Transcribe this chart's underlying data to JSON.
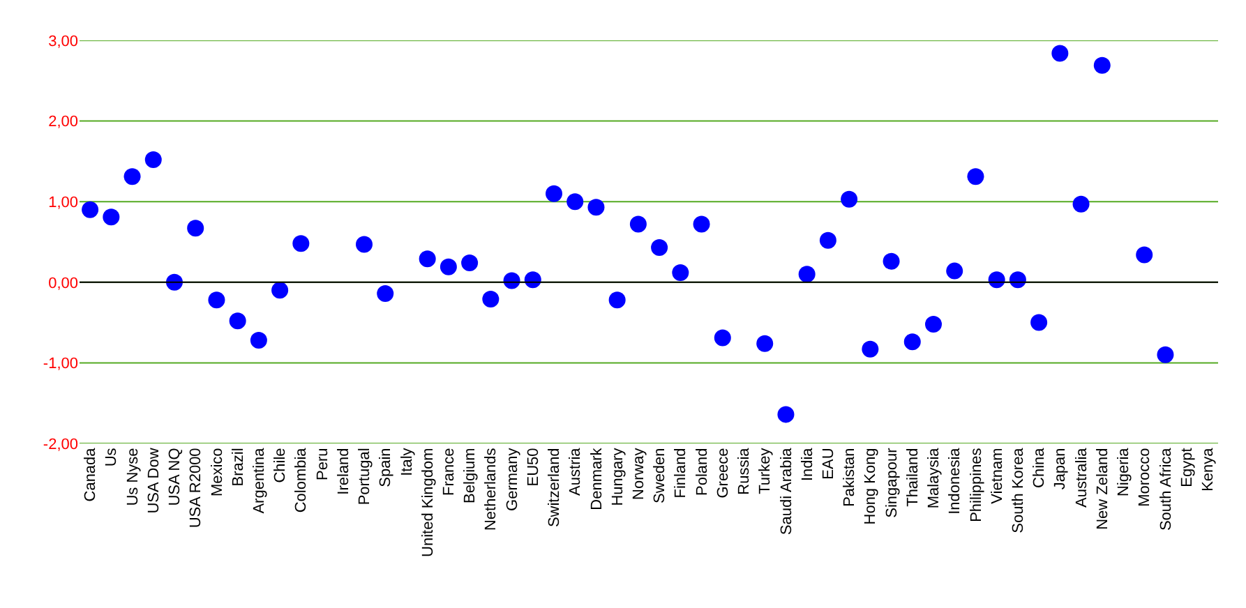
{
  "chart_data": {
    "type": "scatter",
    "categories": [
      "Canada",
      "Us",
      "Us Nyse",
      "USA Dow",
      "USA NQ",
      "USA R2000",
      "Mexico",
      "Brazil",
      "Argentina",
      "Chile",
      "Colombia",
      "Peru",
      "Ireland",
      "Portugal",
      "Spain",
      "Italy",
      "United Kingdom",
      "France",
      "Belgium",
      "Netherlands",
      "Germany",
      "EU50",
      "Switzerland",
      "Austria",
      "Denmark",
      "Hungary",
      "Norway",
      "Sweden",
      "Finland",
      "Poland",
      "Greece",
      "Russia",
      "Turkey",
      "Saudi Arabia",
      "India",
      "EAU",
      "Pakistan",
      "Hong Kong",
      "Singapour",
      "Thailand",
      "Malaysia",
      "Indonesia",
      "Philippines",
      "Vietnam",
      "South Korea",
      "China",
      "Japan",
      "Australia",
      "New Zeland",
      "Nigeria",
      "Morocco",
      "South Africa",
      "Egypt",
      "Kenya"
    ],
    "series": [
      {
        "color": "#0000ff",
        "values": [
          0.9,
          0.81,
          1.31,
          1.52,
          0.0,
          0.67,
          -0.22,
          -0.48,
          -0.72,
          -0.1,
          0.48,
          null,
          null,
          0.47,
          -0.14,
          null,
          0.29,
          0.19,
          0.24,
          -0.21,
          0.02,
          0.03,
          1.1,
          1.0,
          0.93,
          -0.22,
          0.72,
          0.43,
          0.12,
          0.72,
          -0.69,
          null,
          -0.76,
          -1.64,
          0.1,
          0.52,
          1.03,
          -0.83,
          0.26,
          -0.74,
          -0.52,
          0.14,
          1.31,
          0.03,
          0.03,
          -0.5,
          2.84,
          0.97,
          2.69,
          null,
          0.34,
          -0.9,
          null,
          null
        ]
      }
    ],
    "ylim": [
      -2,
      3
    ],
    "yticks": [
      {
        "value": -2,
        "label": "-2,00"
      },
      {
        "value": -1,
        "label": "-1,00"
      },
      {
        "value": 0,
        "label": "0,00"
      },
      {
        "value": 1,
        "label": "1,00"
      },
      {
        "value": 2,
        "label": "2,00"
      },
      {
        "value": 3,
        "label": "3,00"
      }
    ],
    "ref_lines": [
      {
        "axis": "y",
        "value": 0,
        "color": "#000000"
      }
    ],
    "grid": "y",
    "marker": "circle"
  }
}
